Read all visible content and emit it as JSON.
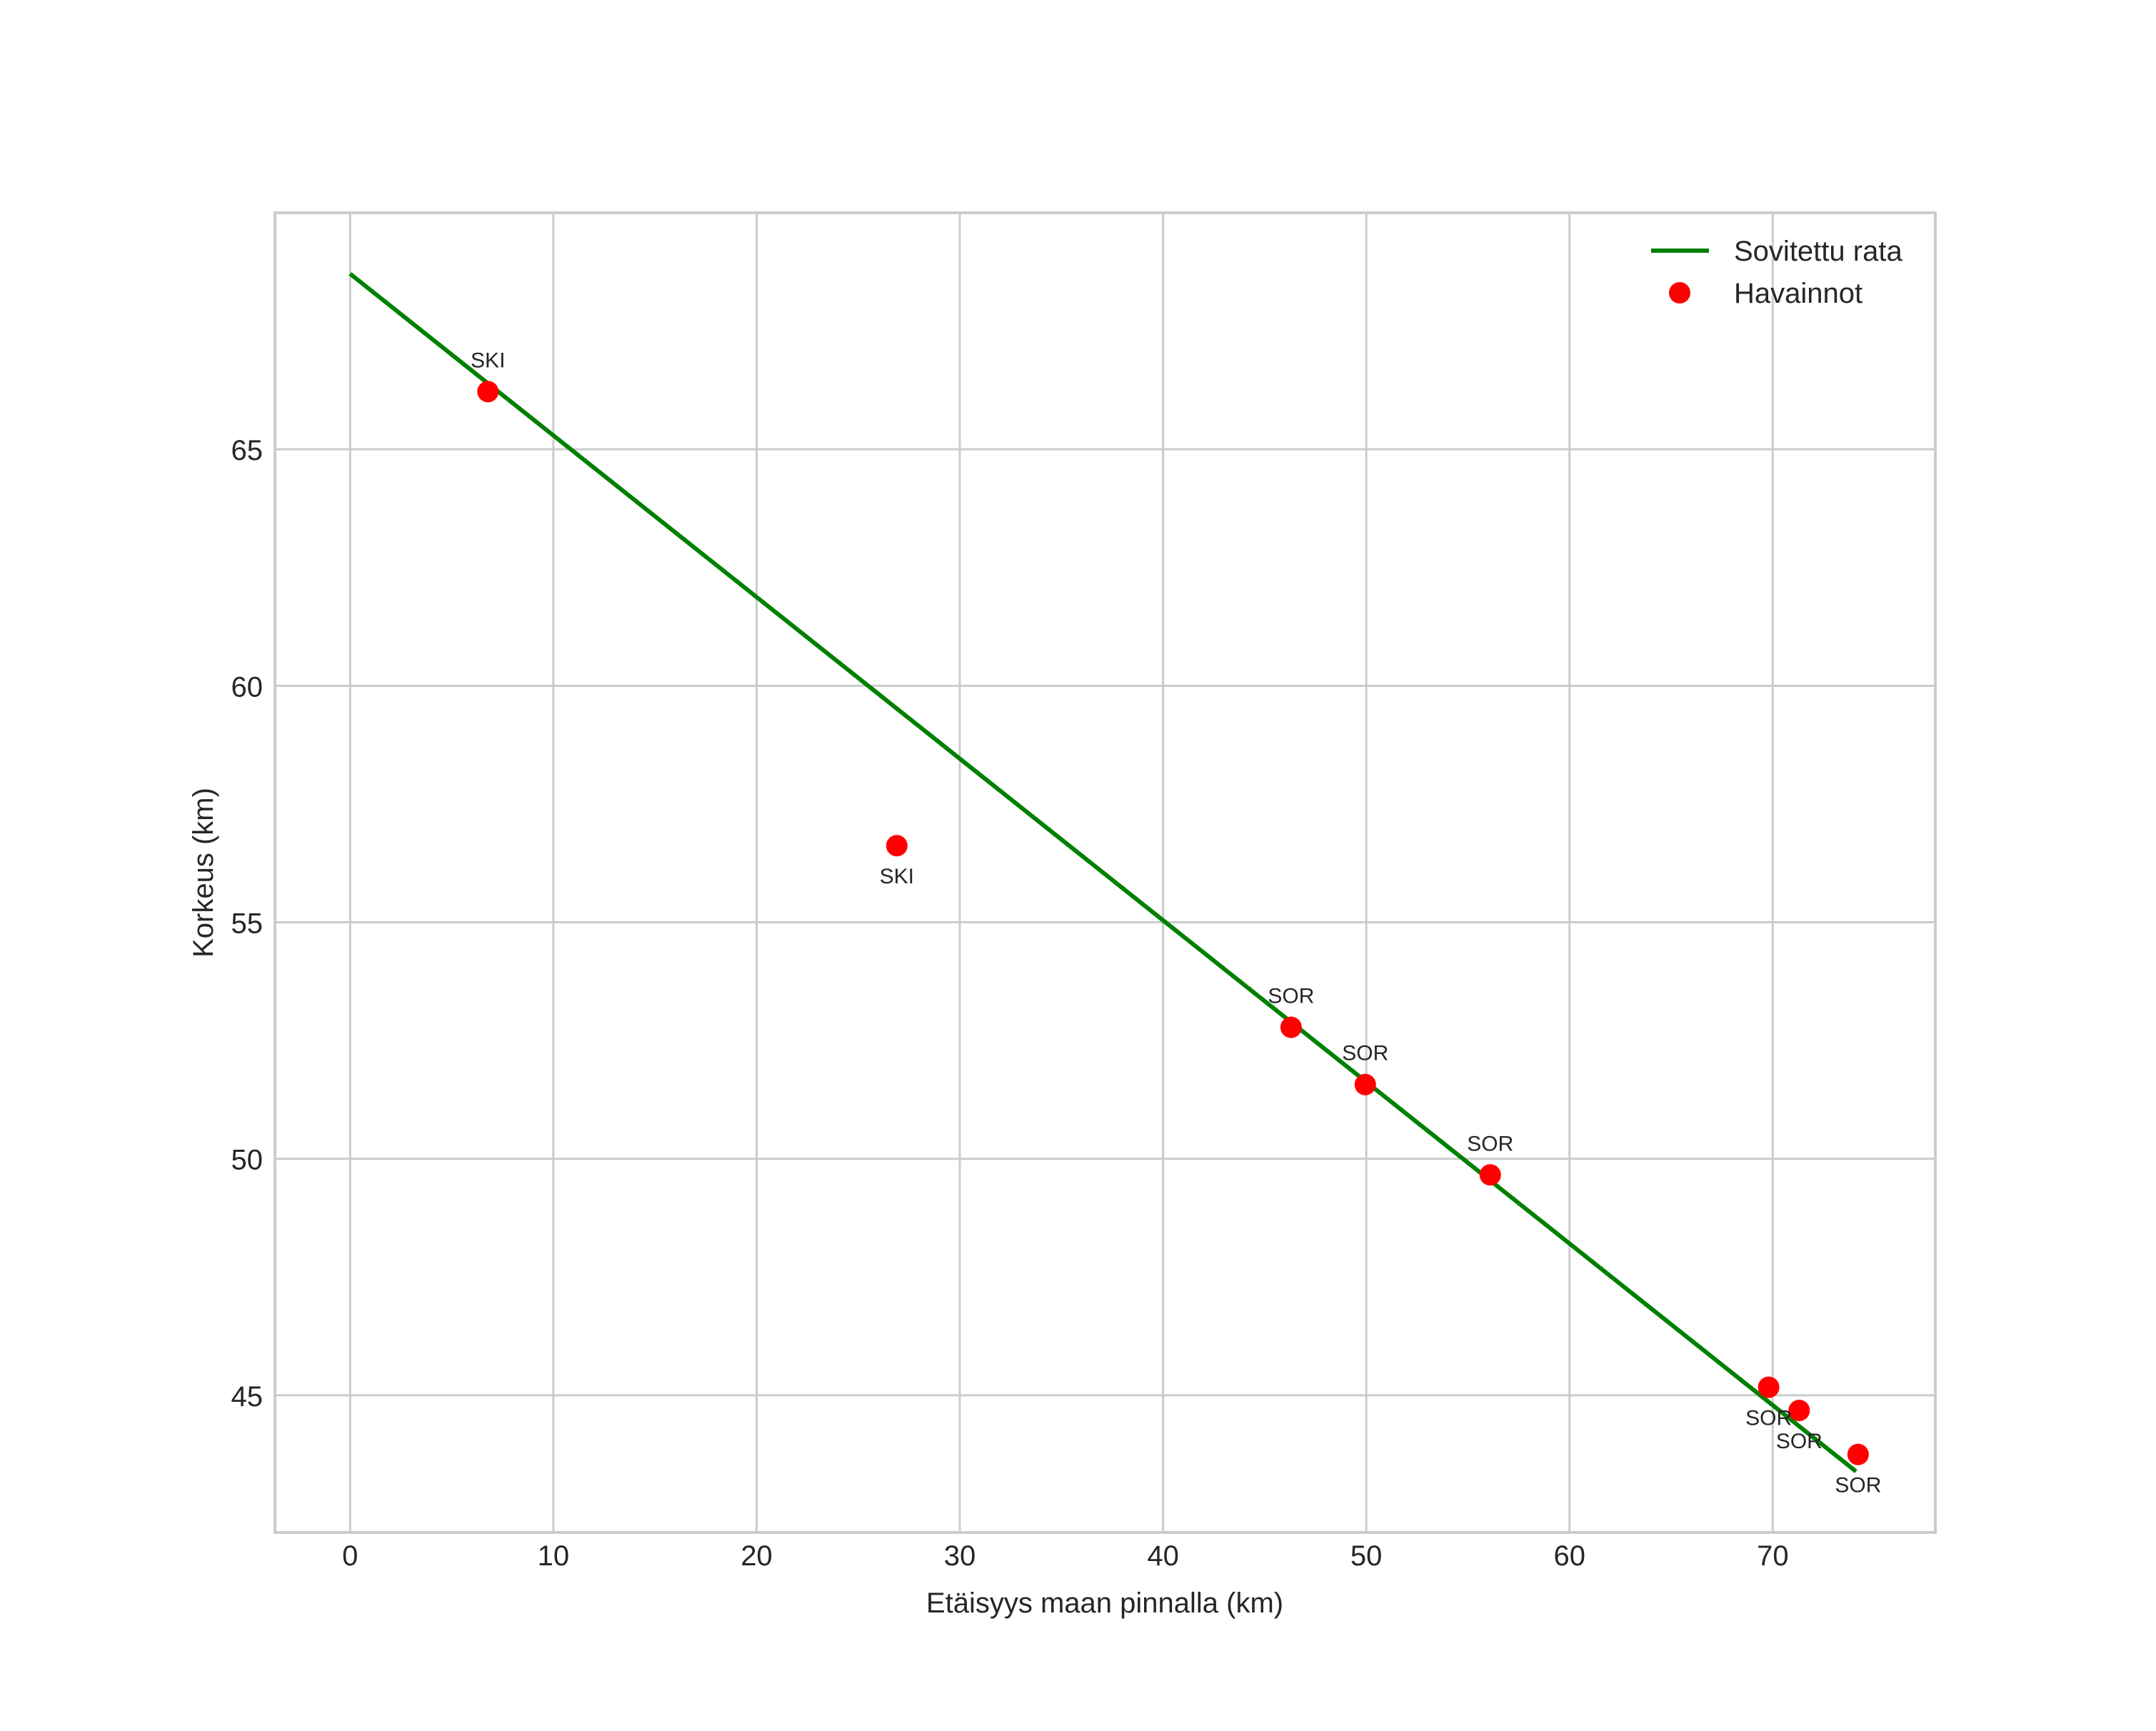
{
  "chart_data": {
    "type": "scatter",
    "title": "",
    "xlabel": "Etäisyys maan pinnalla (km)",
    "ylabel": "Korkeus (km)",
    "xlim": [
      -3.7,
      78.0
    ],
    "ylim": [
      42.1,
      70.0
    ],
    "grid": true,
    "legend_position": "upper right",
    "x_ticks": [
      0,
      10,
      20,
      30,
      40,
      50,
      60,
      70
    ],
    "y_ticks": [
      45,
      50,
      55,
      60,
      65
    ],
    "series": [
      {
        "name": "Sovitettu rata",
        "kind": "line",
        "color": "#008000",
        "x": [
          0.0,
          74.1
        ],
        "y": [
          68.71,
          43.39
        ]
      },
      {
        "name": "Havainnot",
        "kind": "scatter",
        "color": "#ff0000",
        "points": [
          {
            "x": 6.78,
            "y": 66.22,
            "label": "SKI",
            "label_pos": "above"
          },
          {
            "x": 26.9,
            "y": 56.62,
            "label": "SKI",
            "label_pos": "below"
          },
          {
            "x": 46.3,
            "y": 52.78,
            "label": "SOR",
            "label_pos": "above"
          },
          {
            "x": 49.95,
            "y": 51.57,
            "label": "SOR",
            "label_pos": "above"
          },
          {
            "x": 56.1,
            "y": 49.66,
            "label": "SOR",
            "label_pos": "above"
          },
          {
            "x": 69.8,
            "y": 45.17,
            "label": "SOR",
            "label_pos": "below"
          },
          {
            "x": 71.3,
            "y": 44.68,
            "label": "SOR",
            "label_pos": "below"
          },
          {
            "x": 74.2,
            "y": 43.75,
            "label": "SOR",
            "label_pos": "below"
          }
        ]
      }
    ]
  },
  "legend": {
    "items": [
      {
        "label": "Sovitettu rata",
        "symbol": "line",
        "color": "#008000"
      },
      {
        "label": "Havainnot",
        "symbol": "dot",
        "color": "#ff0000"
      }
    ]
  },
  "style": {
    "grid_color": "#cccccc",
    "frame_color": "#cccccc",
    "text_color": "#262626"
  }
}
